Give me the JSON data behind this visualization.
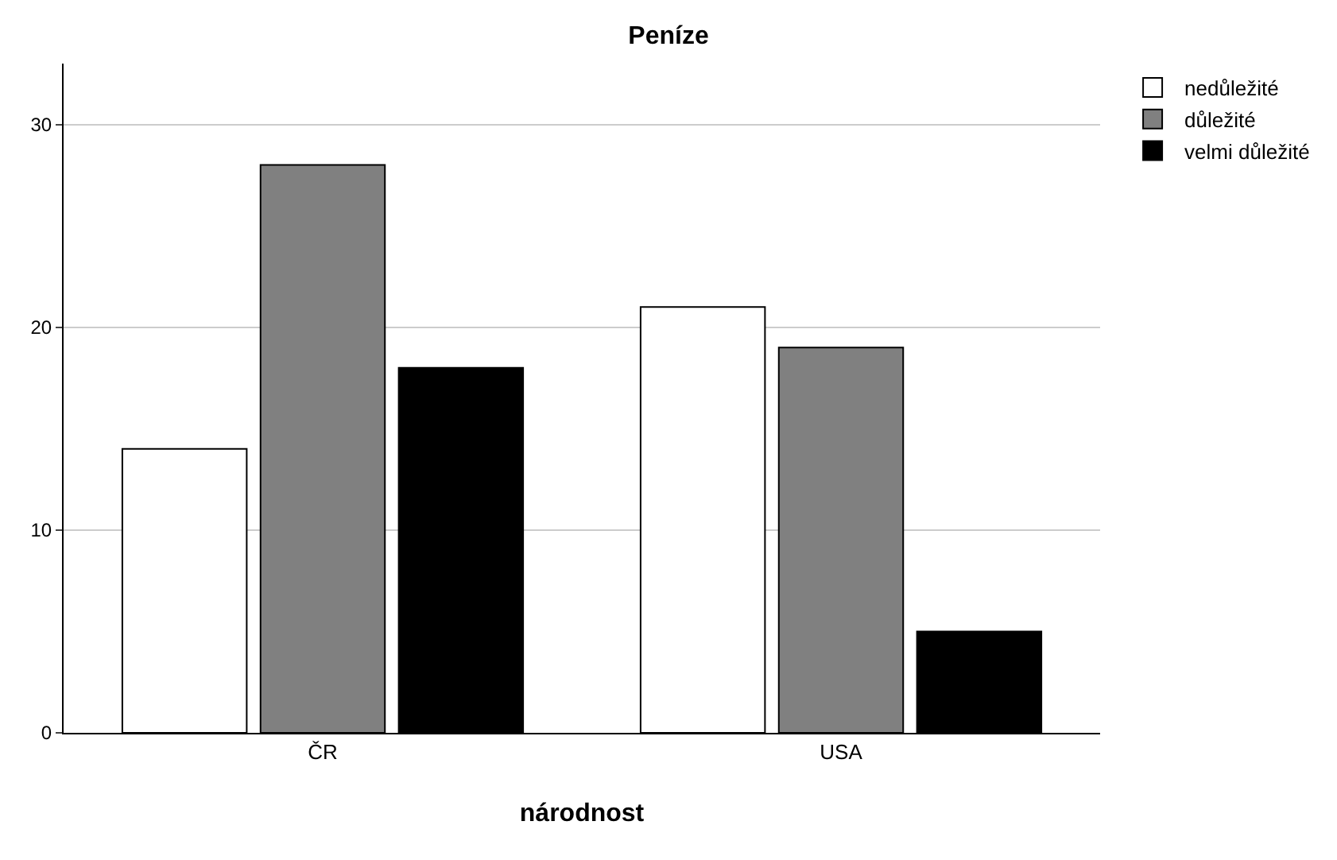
{
  "chart_data": {
    "type": "bar",
    "title": "Peníze",
    "xlabel": "národnost",
    "categories": [
      "ČR",
      "USA"
    ],
    "series": [
      {
        "name": "nedůležité",
        "color": "#ffffff",
        "values": [
          14,
          21
        ]
      },
      {
        "name": "důležité",
        "color": "#808080",
        "values": [
          28,
          19
        ]
      },
      {
        "name": "velmi důležité",
        "color": "#000000",
        "values": [
          18,
          5
        ]
      }
    ],
    "ylim": [
      0,
      33
    ],
    "yticks": [
      0,
      10,
      20,
      30
    ],
    "grid": "y",
    "legend": "top right"
  }
}
